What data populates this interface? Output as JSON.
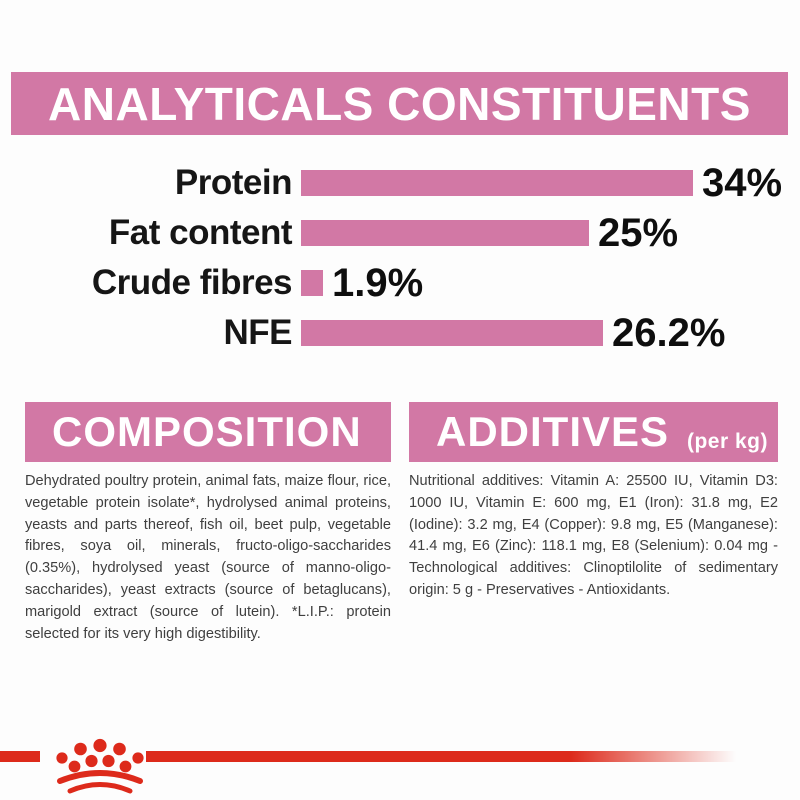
{
  "colors": {
    "pink": "#d278a5",
    "logo_red": "#dd2a1b",
    "body_text": "#3f3f3f",
    "label_black": "#161616",
    "background": "#fdfdfd"
  },
  "analyticals": {
    "title": "ANALYTICALS CONSTITUENTS"
  },
  "chart_data": {
    "type": "bar",
    "orientation": "horizontal",
    "title": "ANALYTICALS CONSTITUENTS",
    "categories": [
      "Protein",
      "Fat content",
      "Crude fibres",
      "NFE"
    ],
    "values": [
      34,
      25,
      1.9,
      26.2
    ],
    "value_labels": [
      "34%",
      "25%",
      "1.9%",
      "26.2%"
    ],
    "unit": "%",
    "xlim": [
      0,
      40
    ],
    "bar_color": "#d278a5",
    "grid": false,
    "axes_shown": false,
    "value_label_position": "end-of-bar"
  },
  "composition": {
    "title": "COMPOSITION",
    "body": "Dehydrated poultry protein, animal fats, maize flour, rice, vegetable protein isolate*, hydrolysed animal proteins, yeasts and parts thereof, fish oil, beet pulp, vegetable fibres, soya oil, minerals, fructo-oligo-saccharides (0.35%), hydrolysed yeast (source of manno-oligo-saccharides), yeast extracts (source of betaglucans), marigold extract (source of lutein). *L.I.P.: protein selected for its very high digestibility."
  },
  "additives": {
    "title": "ADDITIVES",
    "subtitle": "(per kg)",
    "body": "Nutritional additives: Vitamin A: 25500 IU, Vitamin D3: 1000 IU, Vitamin E: 600 mg, E1 (Iron): 31.8 mg, E2 (Iodine): 3.2 mg, E4 (Copper): 9.8 mg, E5 (Manganese): 41.4 mg, E6 (Zinc): 118.1 mg, E8 (Selenium): 0.04 mg - Technological additives: Clinoptilolite of sedimentary origin: 5 g - Preservatives - Antioxidants."
  },
  "logo": {
    "icon": "royal-canin-crown-icon"
  }
}
